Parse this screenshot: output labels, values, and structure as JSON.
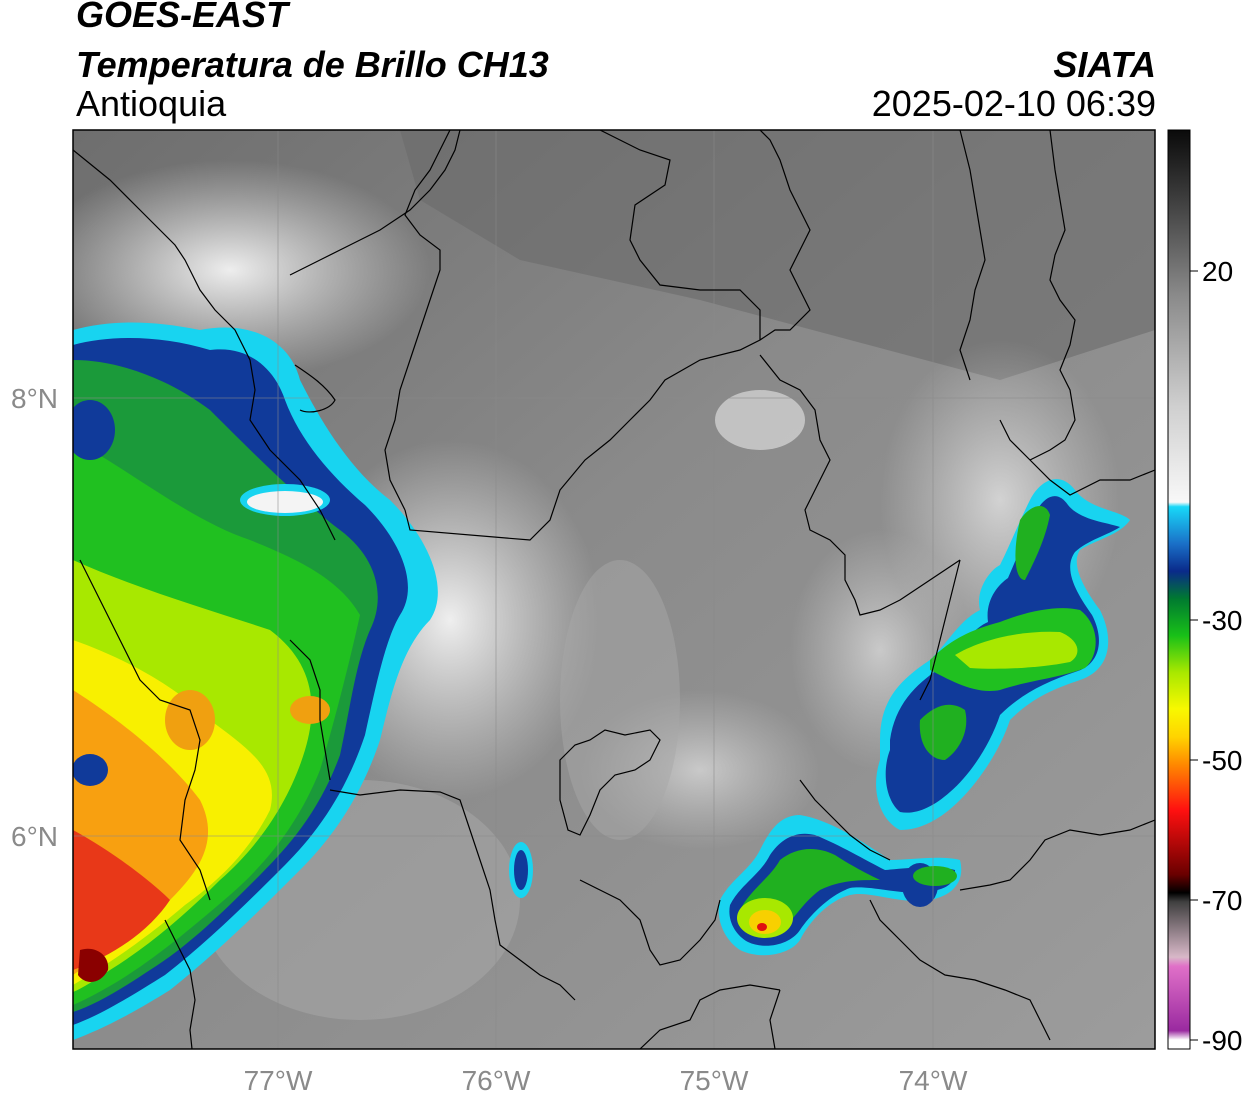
{
  "header": {
    "source": "GOES-EAST",
    "product": "Temperatura de Brillo CH13",
    "region": "Antioquia",
    "organization": "SIATA",
    "timestamp": "2025-02-10 06:39"
  },
  "map": {
    "latitude_labels": [
      "8°N",
      "6°N"
    ],
    "longitude_labels": [
      "77°W",
      "76°W",
      "75°W",
      "74°W"
    ],
    "gridlines": true
  },
  "colorbar": {
    "tick_labels": [
      "20",
      "-30",
      "-50",
      "-70",
      "-90"
    ],
    "colors": {
      "cyan": "#18d4f0",
      "blue": "#103a9a",
      "green": "#18b818",
      "yellow": "#f0f000",
      "orange": "#f09010",
      "red": "#d81010",
      "dark_red": "#5a0000",
      "black": "#000000",
      "pink": "#e060c0",
      "purple": "#a020a0"
    }
  }
}
